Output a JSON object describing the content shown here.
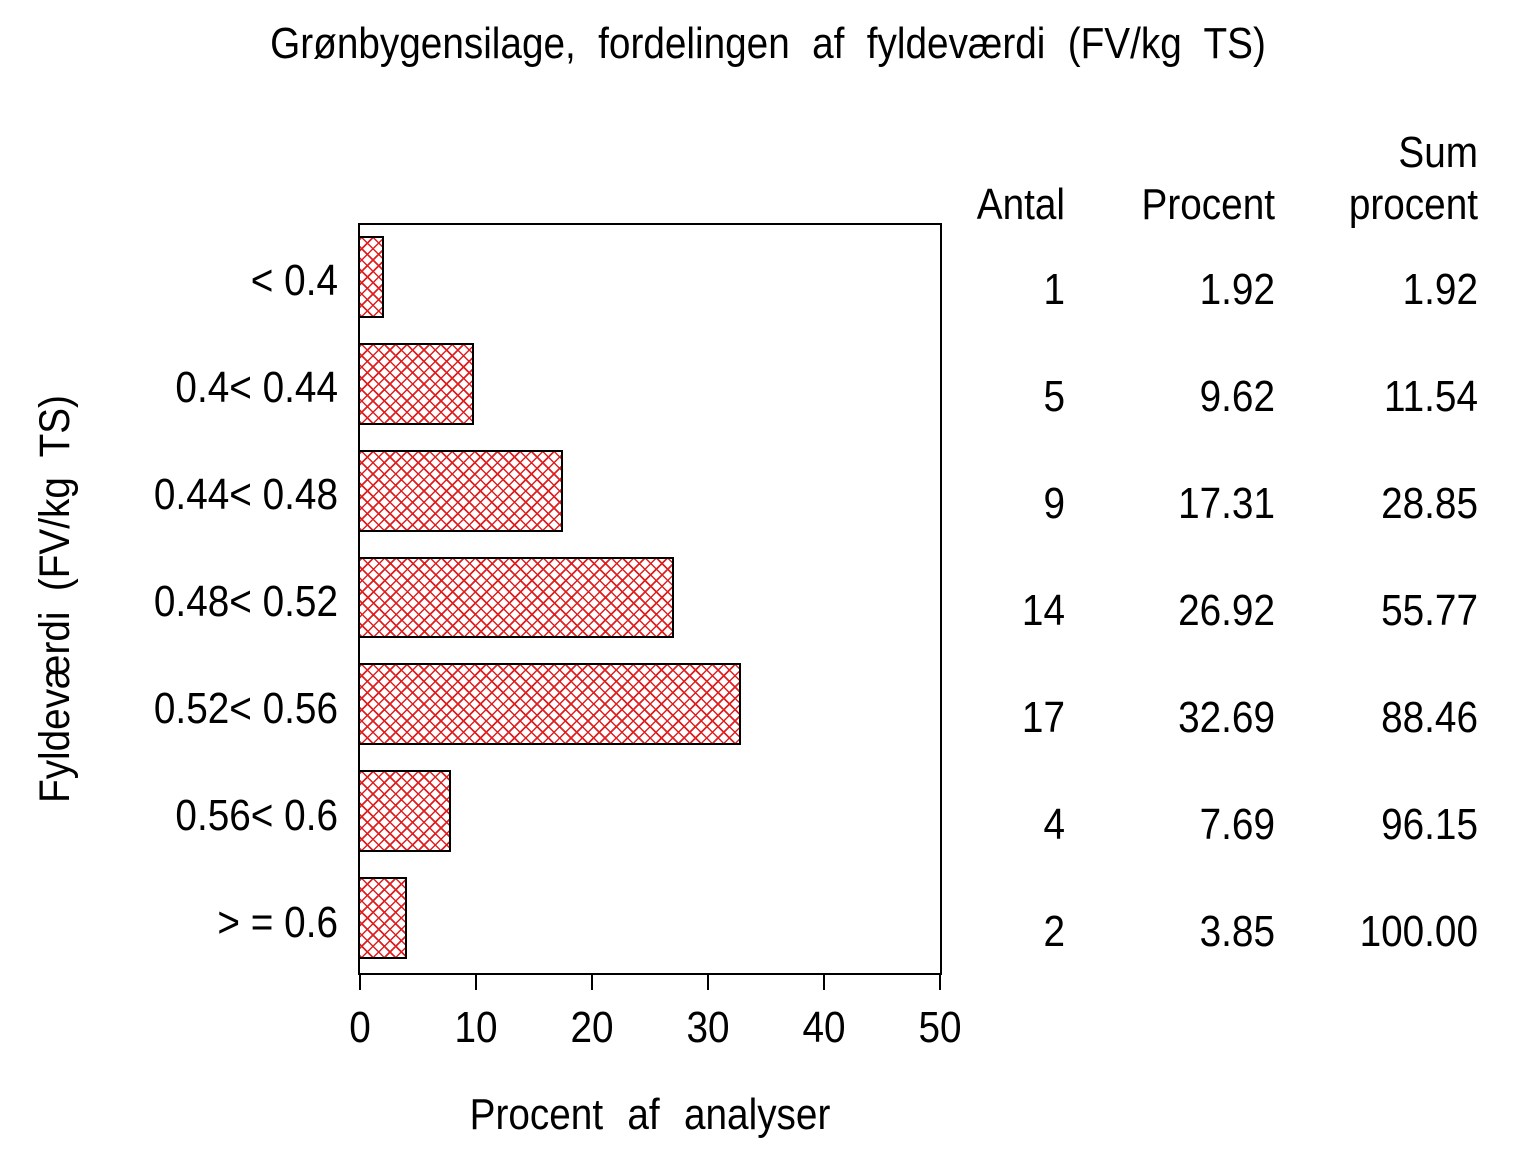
{
  "title": "Grønbygensilage, fordelingen af fyldeværdi (FV/kg TS)",
  "chart_data": {
    "type": "bar",
    "orientation": "horizontal",
    "title": "Grønbygensilage, fordelingen af fyldeværdi (FV/kg TS)",
    "xlabel": "Procent af analyser",
    "ylabel": "Fyldeværdi (FV/kg TS)",
    "xlim": [
      0,
      50
    ],
    "xticks": [
      0,
      10,
      20,
      30,
      40,
      50
    ],
    "xtick_labels": [
      "0",
      "10",
      "20",
      "30",
      "40",
      "50"
    ],
    "grid": false,
    "categories": [
      "< 0.4",
      "0.4< 0.44",
      "0.44< 0.48",
      "0.48< 0.52",
      "0.52< 0.56",
      "0.56< 0.6",
      "> = 0.6"
    ],
    "values": [
      1.92,
      9.62,
      17.31,
      26.92,
      32.69,
      7.69,
      3.85
    ],
    "counts": [
      1,
      5,
      9,
      14,
      17,
      4,
      2
    ],
    "cumulative_percent": [
      1.92,
      11.54,
      28.85,
      55.77,
      88.46,
      96.15,
      100.0
    ],
    "bar_fill": "red-crosshatch",
    "bar_color": "#e02020",
    "bar_border_color": "#000000"
  },
  "table": {
    "columns": [
      "Antal",
      "Procent",
      "Sum procent"
    ],
    "header_line1": [
      "",
      "",
      "Sum"
    ],
    "header_line2": [
      "Antal",
      "Procent",
      "procent"
    ],
    "rows": [
      [
        "1",
        "1.92",
        "1.92"
      ],
      [
        "5",
        "9.62",
        "11.54"
      ],
      [
        "9",
        "17.31",
        "28.85"
      ],
      [
        "14",
        "26.92",
        "55.77"
      ],
      [
        "17",
        "32.69",
        "88.46"
      ],
      [
        "4",
        "7.69",
        "96.15"
      ],
      [
        "2",
        "3.85",
        "100.00"
      ]
    ]
  }
}
